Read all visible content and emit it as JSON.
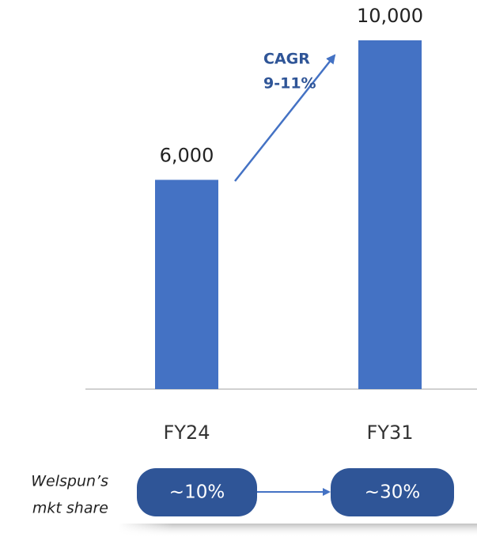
{
  "chart_data": {
    "type": "bar",
    "categories": [
      "FY24",
      "FY31"
    ],
    "values": [
      6000,
      10000
    ],
    "value_labels": [
      "6,000",
      "10,000"
    ],
    "color": "#4472c4",
    "annotations": {
      "cagr": [
        "CAGR",
        "9-11%"
      ],
      "share_label": [
        "Welspun’s",
        "mkt share"
      ],
      "shares": [
        "~10%",
        "~30%"
      ]
    }
  }
}
